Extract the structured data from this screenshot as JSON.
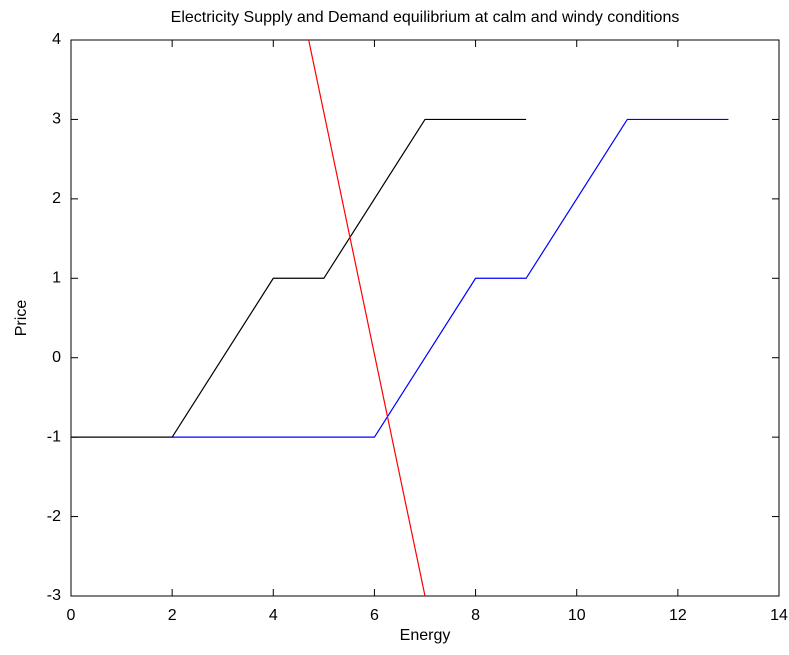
{
  "chart_data": {
    "type": "line",
    "title": "Electricity Supply and Demand equilibrium at calm and windy conditions",
    "x_label": "Energy",
    "y_label": "Price",
    "series": [
      {
        "color": "#000000",
        "x": [
          0,
          2,
          4,
          5,
          7,
          9
        ],
        "values": [
          -1,
          -1,
          1,
          1,
          3,
          3
        ]
      },
      {
        "color": "#0000ff",
        "x": [
          2,
          6,
          8,
          9,
          11,
          13
        ],
        "values": [
          -1,
          -1,
          1,
          1,
          3,
          3
        ]
      },
      {
        "color": "#ff0000",
        "x": [
          4.7,
          7
        ],
        "values": [
          4,
          -3
        ]
      }
    ],
    "xlim": [
      0,
      14
    ],
    "xticks": [
      0,
      2,
      4,
      6,
      8,
      10,
      12,
      14
    ],
    "ylim": [
      -3,
      4
    ],
    "yticks": [
      -3,
      -2,
      -1,
      0,
      1,
      2,
      3,
      4
    ],
    "grid": false
  }
}
